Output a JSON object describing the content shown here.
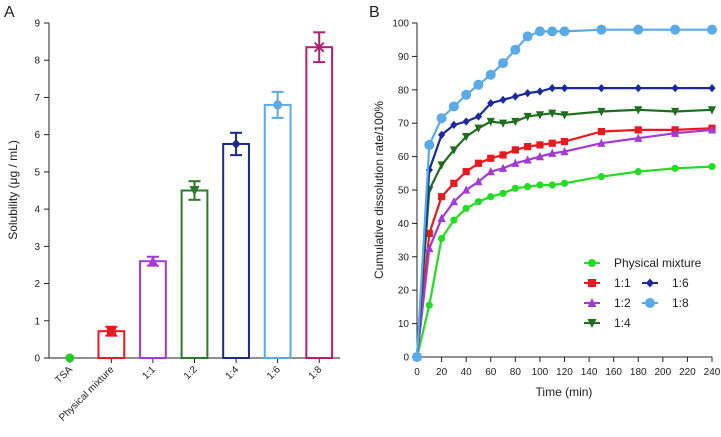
{
  "chart_data": [
    {
      "panel_label": "A",
      "type": "bar",
      "ylabel": "Solubility (μg / mL)",
      "xlabel": "",
      "ylim": [
        0,
        9
      ],
      "yticks": [
        "0",
        "1",
        "2",
        "3",
        "4",
        "5",
        "6",
        "7",
        "8",
        "9"
      ],
      "grid": false,
      "categories": [
        "TSA",
        "Physical mixture",
        "1:1",
        "1:2",
        "1:4",
        "1:6",
        "1:8"
      ],
      "values": [
        0,
        0.72,
        2.6,
        4.5,
        5.75,
        6.8,
        8.35
      ],
      "errors": [
        0,
        0.12,
        0.12,
        0.25,
        0.3,
        0.35,
        0.4
      ],
      "colors": [
        "#22cc22",
        "#e8191f",
        "#a43ad6",
        "#2a7a2a",
        "#1a2a8c",
        "#5aaae8",
        "#b51f6e"
      ],
      "markers": [
        "circle",
        "square",
        "triangle",
        "triangle-down",
        "diamond",
        "circle",
        "x"
      ]
    },
    {
      "panel_label": "B",
      "type": "line",
      "xlabel": "Time (min)",
      "ylabel": "Cumulative dissolution rate/100%",
      "xlim": [
        0,
        240
      ],
      "ylim": [
        0,
        100
      ],
      "xticks": [
        "0",
        "20",
        "40",
        "60",
        "80",
        "100",
        "120",
        "140",
        "160",
        "180",
        "200",
        "220",
        "240"
      ],
      "yticks": [
        "0",
        "10",
        "20",
        "30",
        "40",
        "50",
        "60",
        "70",
        "80",
        "90",
        "100"
      ],
      "grid": false,
      "legend_position": "bottom-right",
      "series": [
        {
          "name": "Physical mixture",
          "color": "#22dd22",
          "marker": "circle",
          "x": [
            0,
            10,
            20,
            30,
            40,
            50,
            60,
            70,
            80,
            90,
            100,
            110,
            120,
            150,
            180,
            210,
            240
          ],
          "y": [
            0,
            15.5,
            35.5,
            41,
            44.5,
            46.5,
            48,
            49,
            50.5,
            51,
            51.5,
            51.5,
            52,
            54,
            55.5,
            56.5,
            57
          ]
        },
        {
          "name": "1:1",
          "color": "#e8191f",
          "marker": "square",
          "x": [
            0,
            10,
            20,
            30,
            40,
            50,
            60,
            70,
            80,
            90,
            100,
            110,
            120,
            150,
            180,
            210,
            240
          ],
          "y": [
            0,
            37,
            48,
            52,
            55.5,
            58,
            59.5,
            60.5,
            62,
            63,
            63.5,
            64,
            64.5,
            67.5,
            68,
            68,
            68.5
          ]
        },
        {
          "name": "1:2",
          "color": "#a43ad6",
          "marker": "triangle",
          "x": [
            0,
            10,
            20,
            30,
            40,
            50,
            60,
            70,
            80,
            90,
            100,
            110,
            120,
            150,
            180,
            210,
            240
          ],
          "y": [
            0,
            32.5,
            41.5,
            46.5,
            50,
            52.5,
            55.5,
            56.5,
            58,
            59,
            60,
            61,
            61.5,
            64,
            65.5,
            67,
            68
          ]
        },
        {
          "name": "1:4",
          "color": "#1e6e1e",
          "marker": "triangle-down",
          "x": [
            0,
            10,
            20,
            30,
            40,
            50,
            60,
            70,
            80,
            90,
            100,
            110,
            120,
            150,
            180,
            210,
            240
          ],
          "y": [
            0,
            50,
            57.5,
            62,
            66,
            68.5,
            70.5,
            70,
            70.5,
            72,
            72.5,
            73,
            72.5,
            73.5,
            74,
            73.5,
            74
          ]
        },
        {
          "name": "1:6",
          "color": "#1a2a9c",
          "marker": "diamond",
          "x": [
            0,
            10,
            20,
            30,
            40,
            50,
            60,
            70,
            80,
            90,
            100,
            110,
            120,
            150,
            180,
            210,
            240
          ],
          "y": [
            0,
            56,
            66.5,
            69.5,
            70.5,
            72,
            76,
            77,
            78,
            79,
            79.5,
            80.5,
            80.5,
            80.5,
            80.5,
            80.5,
            80.5
          ]
        },
        {
          "name": "1:8",
          "color": "#5aaae8",
          "marker": "circle",
          "x": [
            0,
            10,
            20,
            30,
            40,
            50,
            60,
            70,
            80,
            90,
            100,
            110,
            120,
            150,
            180,
            210,
            240
          ],
          "y": [
            0,
            63.5,
            71.5,
            75,
            78.5,
            81.5,
            84.5,
            88,
            92,
            96,
            97.5,
            97.5,
            97.5,
            98,
            98,
            98,
            98
          ]
        }
      ]
    }
  ]
}
